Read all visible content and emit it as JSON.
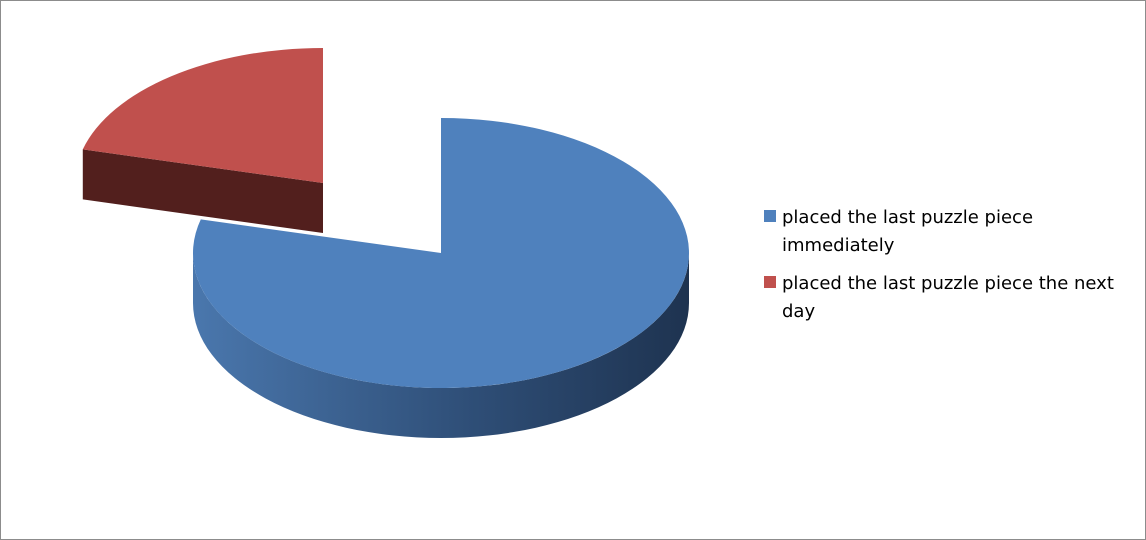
{
  "chart_data": {
    "type": "pie",
    "style": "3d-exploded",
    "series": [
      {
        "name": "placed the last puzzle piece immediately",
        "value": 79,
        "color": "#4F81BD"
      },
      {
        "name": "placed the last puzzle piece the next day",
        "value": 21,
        "color": "#C0504D"
      }
    ],
    "legend_position": "right",
    "title": ""
  }
}
